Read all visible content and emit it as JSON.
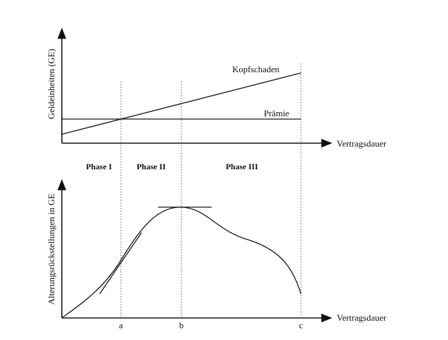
{
  "top_chart": {
    "y_label": "Geldeinheiten (GE)",
    "x_label": "Vertragsdauer",
    "lines": {
      "claims": "Kopfschaden",
      "premium": "Prämie"
    }
  },
  "phases": [
    "Phase I",
    "Phase II",
    "Phase III"
  ],
  "bottom_chart": {
    "y_label": "Alterungsrückstellungen in GE",
    "x_label": "Vertragsdauer"
  },
  "x_markers": [
    "a",
    "b",
    "c"
  ]
}
